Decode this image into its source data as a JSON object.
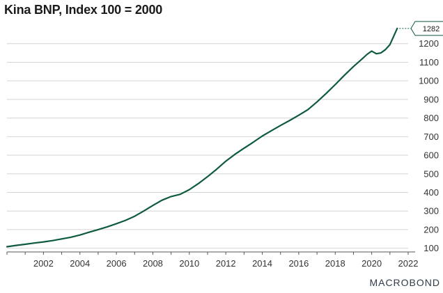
{
  "chart_data": {
    "type": "line",
    "title": "Kina BNP, Index 100 = 2000",
    "xlabel": "",
    "ylabel": "",
    "xlim": [
      2000.0,
      2022.0
    ],
    "ylim": [
      80,
      1330
    ],
    "x_ticks": [
      2002,
      2004,
      2006,
      2008,
      2010,
      2012,
      2014,
      2016,
      2018,
      2020,
      2022
    ],
    "y_ticks": [
      100,
      200,
      300,
      400,
      500,
      600,
      700,
      800,
      900,
      1000,
      1100,
      1200
    ],
    "y_axis_side": "right",
    "grid": "horizontal",
    "legend": "none",
    "series": [
      {
        "color": "#0e5a3c",
        "x": [
          2000.0,
          2000.5,
          2001.0,
          2001.5,
          2002.0,
          2002.5,
          2003.0,
          2003.5,
          2004.0,
          2004.5,
          2005.0,
          2005.5,
          2006.0,
          2006.5,
          2007.0,
          2007.5,
          2008.0,
          2008.5,
          2009.0,
          2009.5,
          2010.0,
          2010.5,
          2011.0,
          2011.5,
          2012.0,
          2012.5,
          2013.0,
          2013.5,
          2014.0,
          2014.5,
          2015.0,
          2015.5,
          2016.0,
          2016.5,
          2017.0,
          2017.5,
          2018.0,
          2018.5,
          2019.0,
          2019.5,
          2019.75,
          2020.0,
          2020.25,
          2020.5,
          2020.75,
          2021.0,
          2021.25,
          2021.4
        ],
        "values": [
          108,
          115,
          121,
          128,
          134,
          141,
          150,
          159,
          171,
          186,
          200,
          215,
          232,
          250,
          272,
          300,
          330,
          358,
          378,
          390,
          415,
          448,
          485,
          525,
          568,
          605,
          638,
          670,
          703,
          732,
          760,
          787,
          815,
          845,
          887,
          932,
          980,
          1030,
          1077,
          1120,
          1143,
          1160,
          1146,
          1150,
          1168,
          1195,
          1250,
          1282
        ]
      }
    ],
    "end_label": "1282",
    "end_label_color": "#0e5a3c"
  },
  "branding": {
    "text": "MACROBOND"
  }
}
